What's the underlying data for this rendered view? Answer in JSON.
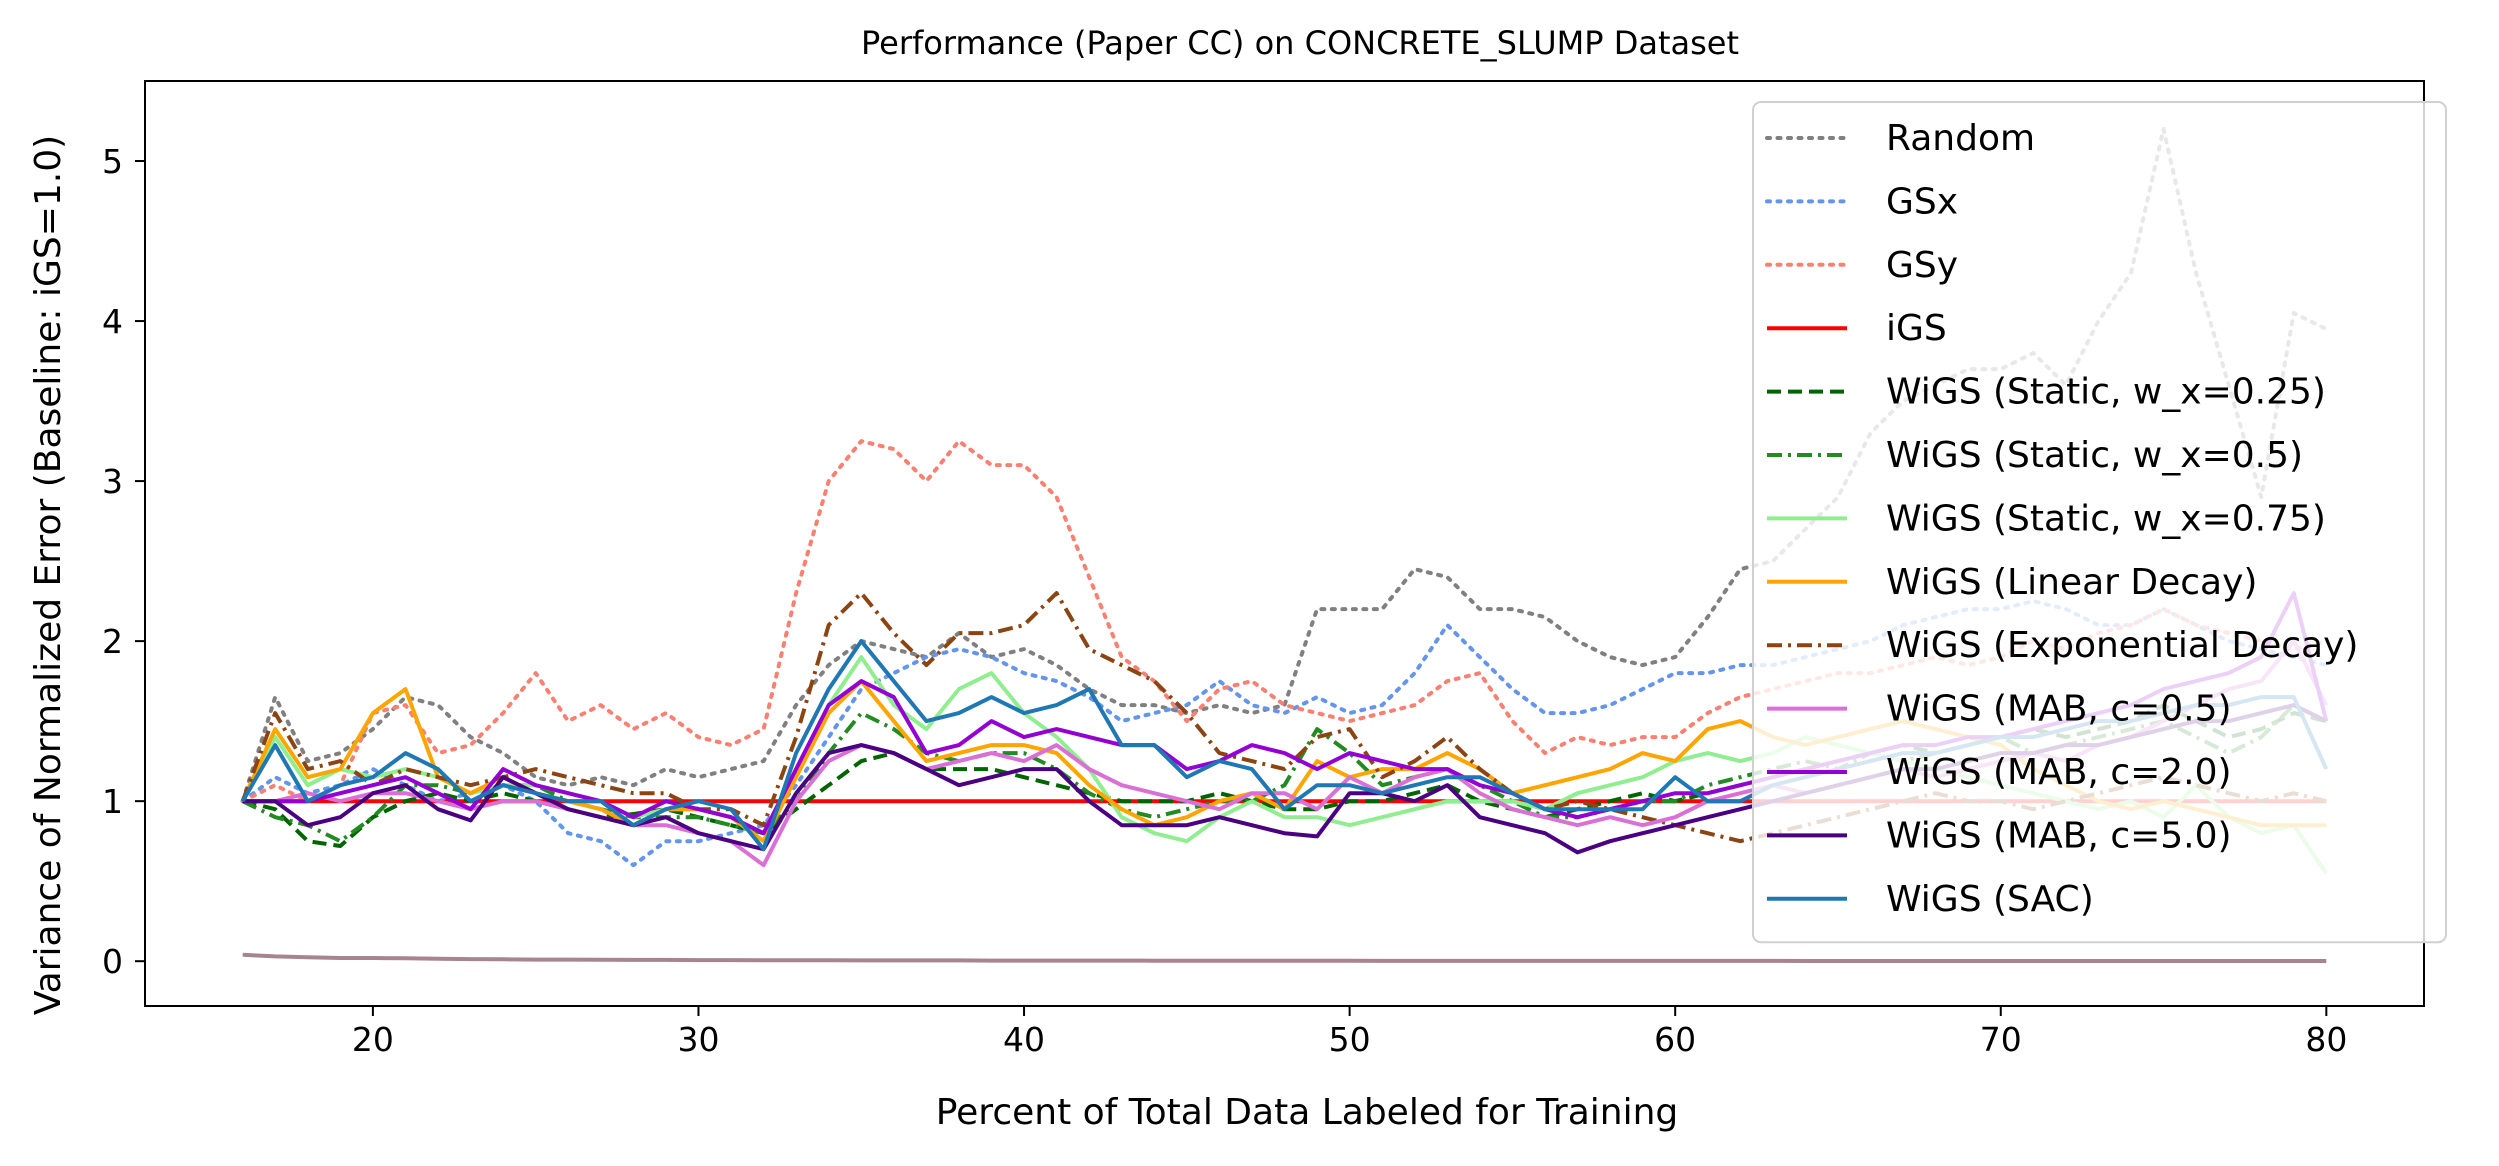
{
  "chart_data": {
    "type": "line",
    "title": "Performance (Paper CC) on CONCRETE_SLUMP Dataset",
    "xlabel": "Percent of Total Data Labeled for Training",
    "ylabel": "Variance of Normalized Error (Baseline: iGS=1.0)",
    "xlim": [
      13,
      83
    ],
    "ylim": [
      -0.28,
      5.5
    ],
    "xticks": [
      20,
      30,
      40,
      50,
      60,
      70,
      80
    ],
    "yticks": [
      0,
      1,
      2,
      3,
      4,
      5
    ],
    "grid": false,
    "legend_position": "top-right",
    "x": [
      16,
      17,
      18,
      19,
      20,
      21,
      22,
      23,
      24,
      25,
      26,
      27,
      28,
      29,
      30,
      31,
      32,
      33,
      34,
      35,
      36,
      37,
      38,
      39,
      40,
      41,
      42,
      43,
      44,
      45,
      46,
      47,
      48,
      49,
      50,
      51,
      52,
      53,
      54,
      55,
      56,
      57,
      58,
      59,
      60,
      61,
      62,
      63,
      64,
      65,
      66,
      67,
      68,
      69,
      70,
      71,
      72,
      73,
      74,
      75,
      76,
      77,
      78,
      79,
      80
    ],
    "series": [
      {
        "name": "Random",
        "color": "#808080",
        "dash": "dotted",
        "values": [
          1.0,
          1.65,
          1.25,
          1.3,
          1.45,
          1.65,
          1.6,
          1.4,
          1.3,
          1.15,
          1.1,
          1.15,
          1.1,
          1.2,
          1.15,
          1.2,
          1.25,
          1.6,
          1.85,
          2.0,
          1.95,
          1.9,
          2.05,
          1.9,
          1.95,
          1.85,
          1.7,
          1.6,
          1.6,
          1.55,
          1.6,
          1.55,
          1.6,
          2.2,
          2.2,
          2.2,
          2.45,
          2.4,
          2.2,
          2.2,
          2.15,
          2.0,
          1.9,
          1.85,
          1.9,
          2.15,
          2.45,
          2.5,
          2.7,
          2.9,
          3.3,
          3.5,
          3.6,
          3.7,
          3.7,
          3.8,
          3.6,
          4.0,
          4.3,
          5.2,
          4.3,
          3.6,
          2.9,
          4.05,
          3.95
        ]
      },
      {
        "name": "GSx",
        "color": "#6495ed",
        "dash": "dotted",
        "values": [
          1.0,
          1.15,
          1.05,
          1.1,
          1.2,
          1.1,
          1.0,
          1.05,
          1.1,
          1.0,
          0.8,
          0.75,
          0.6,
          0.75,
          0.75,
          0.8,
          0.85,
          1.1,
          1.4,
          1.7,
          1.8,
          1.9,
          1.95,
          1.9,
          1.8,
          1.75,
          1.65,
          1.5,
          1.55,
          1.6,
          1.75,
          1.6,
          1.55,
          1.65,
          1.55,
          1.6,
          1.8,
          2.1,
          1.9,
          1.7,
          1.55,
          1.55,
          1.6,
          1.7,
          1.8,
          1.8,
          1.85,
          1.85,
          1.9,
          1.95,
          2.0,
          2.1,
          2.15,
          2.2,
          2.2,
          2.25,
          2.2,
          2.1,
          2.1,
          2.2,
          2.1,
          2.0,
          1.95,
          1.9,
          1.85
        ]
      },
      {
        "name": "GSy",
        "color": "#fa8072",
        "dash": "dotted",
        "values": [
          1.0,
          1.1,
          1.0,
          1.1,
          1.55,
          1.6,
          1.3,
          1.35,
          1.55,
          1.8,
          1.5,
          1.6,
          1.45,
          1.55,
          1.4,
          1.35,
          1.45,
          2.3,
          3.0,
          3.25,
          3.2,
          3.0,
          3.25,
          3.1,
          3.1,
          2.9,
          2.4,
          1.9,
          1.75,
          1.5,
          1.7,
          1.75,
          1.6,
          1.55,
          1.5,
          1.55,
          1.6,
          1.75,
          1.8,
          1.5,
          1.3,
          1.4,
          1.35,
          1.4,
          1.4,
          1.55,
          1.65,
          1.7,
          1.75,
          1.8,
          1.8,
          1.85,
          1.9,
          1.85,
          1.9,
          2.0,
          1.95,
          2.05,
          2.1,
          2.2,
          2.1,
          2.05,
          2.0,
          1.95,
          2.0
        ]
      },
      {
        "name": "iGS",
        "color": "#ff0000",
        "dash": "solid",
        "values": [
          1.0,
          1.0,
          1.0,
          1.0,
          1.0,
          1.0,
          1.0,
          1.0,
          1.0,
          1.0,
          1.0,
          1.0,
          1.0,
          1.0,
          1.0,
          1.0,
          1.0,
          1.0,
          1.0,
          1.0,
          1.0,
          1.0,
          1.0,
          1.0,
          1.0,
          1.0,
          1.0,
          1.0,
          1.0,
          1.0,
          1.0,
          1.0,
          1.0,
          1.0,
          1.0,
          1.0,
          1.0,
          1.0,
          1.0,
          1.0,
          1.0,
          1.0,
          1.0,
          1.0,
          1.0,
          1.0,
          1.0,
          1.0,
          1.0,
          1.0,
          1.0,
          1.0,
          1.0,
          1.0,
          1.0,
          1.0,
          1.0,
          1.0,
          1.0,
          1.0,
          1.0,
          1.0,
          1.0,
          1.0,
          1.0
        ]
      },
      {
        "name": "WiGS (Static, w_x=0.25)",
        "color": "#006400",
        "dash": "dashed",
        "values": [
          1.0,
          0.95,
          0.75,
          0.72,
          0.9,
          1.0,
          1.05,
          1.0,
          1.05,
          1.0,
          0.95,
          0.9,
          0.92,
          0.95,
          0.9,
          0.85,
          0.8,
          0.95,
          1.1,
          1.25,
          1.3,
          1.2,
          1.2,
          1.2,
          1.15,
          1.1,
          1.05,
          1.0,
          1.0,
          1.0,
          1.05,
          1.0,
          0.95,
          0.95,
          1.0,
          1.0,
          1.05,
          1.1,
          1.0,
          0.95,
          0.9,
          0.95,
          1.0,
          1.05,
          1.0,
          1.05,
          1.1,
          1.15,
          1.2,
          1.25,
          1.3,
          1.35,
          1.3,
          1.35,
          1.4,
          1.45,
          1.4,
          1.45,
          1.5,
          1.6,
          1.5,
          1.4,
          1.45,
          1.55,
          1.5
        ]
      },
      {
        "name": "WiGS (Static, w_x=0.5)",
        "color": "#228b22",
        "dash": "dashdot",
        "values": [
          1.0,
          0.9,
          0.85,
          0.75,
          0.9,
          1.1,
          1.1,
          1.05,
          1.1,
          1.1,
          1.0,
          0.95,
          0.9,
          0.9,
          0.9,
          0.85,
          0.8,
          1.0,
          1.3,
          1.55,
          1.45,
          1.3,
          1.25,
          1.3,
          1.3,
          1.2,
          1.05,
          0.95,
          0.9,
          0.95,
          1.0,
          1.0,
          1.1,
          1.45,
          1.3,
          1.1,
          1.15,
          1.2,
          1.1,
          1.0,
          0.9,
          0.9,
          0.95,
          1.0,
          1.0,
          1.1,
          1.15,
          1.2,
          1.25,
          1.2,
          1.3,
          1.25,
          1.3,
          1.35,
          1.4,
          1.3,
          1.35,
          1.4,
          1.45,
          1.5,
          1.4,
          1.3,
          1.4,
          1.6,
          1.5
        ]
      },
      {
        "name": "WiGS (Static, w_x=0.75)",
        "color": "#90ee90",
        "dash": "solid",
        "values": [
          1.0,
          1.4,
          1.1,
          1.2,
          1.15,
          1.2,
          1.15,
          1.05,
          1.1,
          1.1,
          1.05,
          1.0,
          0.9,
          0.95,
          0.95,
          0.9,
          0.75,
          1.2,
          1.6,
          1.9,
          1.6,
          1.45,
          1.7,
          1.8,
          1.55,
          1.4,
          1.2,
          0.9,
          0.8,
          0.75,
          0.9,
          1.0,
          0.9,
          0.9,
          0.85,
          0.9,
          0.95,
          1.0,
          1.0,
          1.0,
          0.95,
          1.05,
          1.1,
          1.15,
          1.25,
          1.3,
          1.25,
          1.3,
          1.4,
          1.35,
          1.3,
          1.25,
          1.2,
          1.15,
          1.1,
          1.05,
          1.0,
          0.95,
          1.0,
          0.9,
          1.1,
          0.9,
          0.8,
          0.85,
          0.55
        ]
      },
      {
        "name": "WiGS (Linear Decay)",
        "color": "#ffa500",
        "dash": "solid",
        "values": [
          1.0,
          1.45,
          1.15,
          1.2,
          1.55,
          1.7,
          1.15,
          1.05,
          1.15,
          1.05,
          1.0,
          0.95,
          0.85,
          0.95,
          0.95,
          0.9,
          0.75,
          1.15,
          1.55,
          1.75,
          1.5,
          1.25,
          1.3,
          1.35,
          1.35,
          1.3,
          1.1,
          0.95,
          0.85,
          0.9,
          1.0,
          1.05,
          0.95,
          1.25,
          1.15,
          1.2,
          1.2,
          1.3,
          1.2,
          1.05,
          1.1,
          1.15,
          1.2,
          1.3,
          1.25,
          1.45,
          1.5,
          1.4,
          1.35,
          1.4,
          1.45,
          1.5,
          1.45,
          1.4,
          1.35,
          1.2,
          1.1,
          1.0,
          0.95,
          1.0,
          0.95,
          0.9,
          0.85,
          0.85,
          0.85
        ]
      },
      {
        "name": "WiGS (Exponential Decay)",
        "color": "#8b4513",
        "dash": "dashdot",
        "values": [
          1.0,
          1.55,
          1.2,
          1.25,
          1.1,
          1.2,
          1.15,
          1.1,
          1.15,
          1.2,
          1.15,
          1.1,
          1.05,
          1.05,
          0.95,
          0.95,
          0.85,
          1.4,
          2.1,
          2.3,
          2.05,
          1.85,
          2.05,
          2.05,
          2.1,
          2.3,
          1.95,
          1.85,
          1.75,
          1.55,
          1.3,
          1.25,
          1.2,
          1.4,
          1.45,
          1.15,
          1.25,
          1.4,
          1.2,
          1.05,
          0.95,
          1.0,
          0.95,
          0.9,
          0.85,
          0.8,
          0.75,
          0.8,
          0.85,
          0.9,
          0.95,
          1.0,
          1.05,
          1.0,
          1.0,
          0.95,
          1.0,
          1.05,
          1.1,
          1.15,
          1.1,
          1.05,
          1.0,
          1.05,
          1.0
        ]
      },
      {
        "name": "WiGS (MAB, c=0.5)",
        "color": "#da70d6",
        "dash": "solid",
        "values": [
          1.0,
          1.0,
          1.05,
          1.0,
          1.05,
          1.05,
          1.0,
          0.95,
          1.0,
          1.0,
          0.95,
          0.9,
          0.85,
          0.85,
          0.8,
          0.75,
          0.6,
          1.0,
          1.25,
          1.35,
          1.3,
          1.2,
          1.25,
          1.3,
          1.25,
          1.35,
          1.2,
          1.1,
          1.05,
          1.0,
          0.95,
          1.05,
          1.05,
          0.95,
          1.15,
          1.05,
          1.15,
          1.2,
          1.05,
          0.95,
          0.9,
          0.85,
          0.9,
          0.85,
          0.9,
          1.0,
          1.05,
          1.1,
          1.05,
          1.1,
          1.15,
          1.2,
          1.15,
          1.2,
          1.25,
          1.3,
          1.25,
          1.35,
          1.4,
          1.5,
          1.6,
          1.7,
          1.75,
          2.0,
          1.6
        ]
      },
      {
        "name": "WiGS (MAB, c=2.0)",
        "color": "#9400d3",
        "dash": "solid",
        "values": [
          1.0,
          1.0,
          1.0,
          1.05,
          1.1,
          1.15,
          1.05,
          0.95,
          1.2,
          1.1,
          1.05,
          1.0,
          0.9,
          1.0,
          0.95,
          0.9,
          0.8,
          1.2,
          1.6,
          1.75,
          1.65,
          1.3,
          1.35,
          1.5,
          1.4,
          1.45,
          1.4,
          1.35,
          1.35,
          1.2,
          1.25,
          1.35,
          1.3,
          1.2,
          1.3,
          1.25,
          1.2,
          1.2,
          1.1,
          1.05,
          0.95,
          0.9,
          0.95,
          1.0,
          1.05,
          1.05,
          1.1,
          1.15,
          1.2,
          1.25,
          1.3,
          1.35,
          1.35,
          1.4,
          1.4,
          1.45,
          1.5,
          1.55,
          1.6,
          1.7,
          1.75,
          1.8,
          1.9,
          2.3,
          1.5
        ]
      },
      {
        "name": "WiGS (MAB, c=5.0)",
        "color": "#4b0082",
        "dash": "solid",
        "values": [
          1.0,
          1.0,
          0.85,
          0.9,
          1.05,
          1.1,
          0.95,
          0.88,
          1.15,
          1.05,
          0.95,
          0.9,
          0.85,
          0.9,
          0.8,
          0.75,
          0.7,
          1.05,
          1.3,
          1.35,
          1.3,
          1.2,
          1.1,
          1.15,
          1.2,
          1.2,
          1.0,
          0.85,
          0.85,
          0.85,
          0.9,
          0.85,
          0.8,
          0.78,
          1.05,
          1.05,
          1.0,
          1.1,
          0.9,
          0.85,
          0.8,
          0.68,
          0.75,
          0.8,
          0.85,
          0.9,
          0.95,
          1.0,
          1.05,
          1.1,
          1.15,
          1.2,
          1.2,
          1.25,
          1.3,
          1.3,
          1.35,
          1.35,
          1.4,
          1.45,
          1.5,
          1.5,
          1.55,
          1.6,
          1.5
        ]
      },
      {
        "name": "WiGS (SAC)",
        "color": "#1f77b4",
        "dash": "solid",
        "values": [
          1.0,
          1.35,
          1.0,
          1.1,
          1.15,
          1.3,
          1.2,
          1.0,
          1.1,
          1.05,
          1.0,
          1.0,
          0.85,
          0.95,
          1.0,
          0.95,
          0.7,
          1.3,
          1.7,
          2.0,
          1.75,
          1.5,
          1.55,
          1.65,
          1.55,
          1.6,
          1.7,
          1.35,
          1.35,
          1.15,
          1.25,
          1.2,
          0.95,
          1.1,
          1.1,
          1.05,
          1.1,
          1.15,
          1.15,
          1.05,
          0.95,
          0.95,
          0.95,
          0.95,
          1.15,
          1.0,
          1.0,
          1.1,
          1.15,
          1.2,
          1.25,
          1.3,
          1.3,
          1.35,
          1.4,
          1.4,
          1.45,
          1.5,
          1.5,
          1.55,
          1.6,
          1.6,
          1.65,
          1.65,
          1.2
        ]
      },
      {
        "name": "",
        "color": "#a88490",
        "dash": "solid",
        "values": [
          0.04,
          0.03,
          0.025,
          0.02,
          0.02,
          0.018,
          0.015,
          0.013,
          0.012,
          0.01,
          0.01,
          0.009,
          0.008,
          0.008,
          0.007,
          0.007,
          0.006,
          0.006,
          0.006,
          0.005,
          0.005,
          0.005,
          0.005,
          0.004,
          0.004,
          0.004,
          0.004,
          0.004,
          0.003,
          0.003,
          0.003,
          0.003,
          0.003,
          0.003,
          0.003,
          0.002,
          0.002,
          0.002,
          0.002,
          0.002,
          0.002,
          0.002,
          0.002,
          0.002,
          0.002,
          0.002,
          0.002,
          0.002,
          0.001,
          0.001,
          0.001,
          0.001,
          0.001,
          0.001,
          0.001,
          0.001,
          0.001,
          0.001,
          0.001,
          0.001,
          0.001,
          0.001,
          0.001,
          0.001,
          0.001
        ]
      }
    ]
  }
}
